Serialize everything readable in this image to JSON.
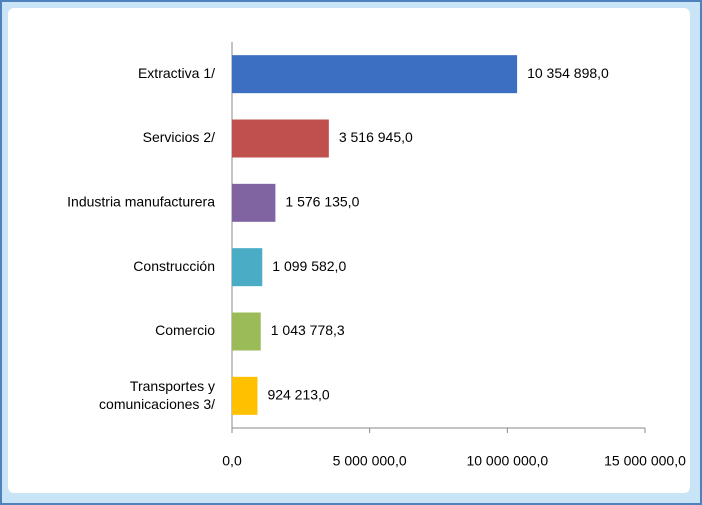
{
  "chart_data": {
    "type": "barh",
    "categories": [
      "Extractiva  1/",
      "Servicios 2/",
      "Industria manufacturera",
      "Construcción",
      "Comercio",
      "Transportes y\ncomunicaciones 3/"
    ],
    "values": [
      10354898.0,
      3516945.0,
      1576135.0,
      1099582.0,
      1043778.3,
      924213.0
    ],
    "value_labels": [
      "10 354 898,0",
      "3 516 945,0",
      "1 576 135,0",
      "1 099 582,0",
      "1 043 778,3",
      "924 213,0"
    ],
    "colors": [
      "#3c6fc2",
      "#c0504d",
      "#8064a2",
      "#4bacc6",
      "#9bbb59",
      "#ffc000"
    ],
    "xlim": [
      0,
      15000000
    ],
    "xticks": [
      {
        "value": 0,
        "label": "0,0"
      },
      {
        "value": 5000000,
        "label": "5 000 000,0"
      },
      {
        "value": 10000000,
        "label": "10 000 000,0"
      },
      {
        "value": 15000000,
        "label": "15 000 000,0"
      }
    ]
  }
}
